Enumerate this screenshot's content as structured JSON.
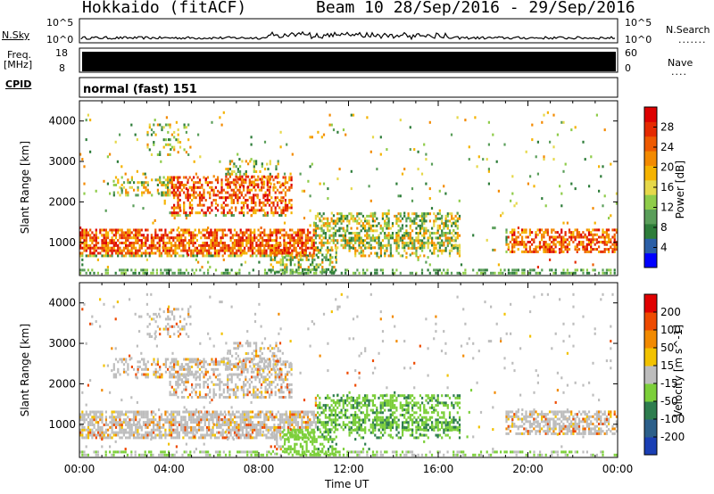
{
  "header": {
    "radar": "Hokkaido (fitACF)",
    "beam_date": "Beam 10  28/Sep/2016 - 29/Sep/2016"
  },
  "strips": {
    "nsky_label": "N.Sky",
    "nsky_ticks": [
      "10^5",
      "10^0"
    ],
    "nsearch_label": "N.Search",
    "nsearch_ticks": [
      "10^5",
      "10^0"
    ],
    "freq_label": "Freq.",
    "freq_unit": "[MHz]",
    "freq_ticks": [
      "18",
      "8"
    ],
    "nave_label": "Nave",
    "nave_ticks": [
      "60",
      "0"
    ],
    "cpid_label": "CPID",
    "cpid_value": "normal (fast) 151"
  },
  "chart_data": [
    {
      "type": "heatmap",
      "name": "power",
      "ylabel": "Slant Range [km]",
      "yticks": [
        "4000",
        "3000",
        "2000",
        "1000"
      ],
      "ylim": [
        180,
        4500
      ],
      "colorbar_label": "Power [dB]",
      "colorbar_ticks": [
        "28",
        "24",
        "20",
        "16",
        "12",
        "8",
        "4"
      ],
      "colorbar_colors": [
        "#0000ff",
        "#2b5fa6",
        "#2e7d3a",
        "#5a9e5a",
        "#8fcc4a",
        "#e6d84a",
        "#f5b300",
        "#f38a00",
        "#ee5a00",
        "#e52a00",
        "#dd0000"
      ],
      "features": [
        {
          "t_start": 0.0,
          "t_end": 10.5,
          "range_km": 1000,
          "level": "high"
        },
        {
          "t_start": 4.5,
          "t_end": 10.0,
          "range_km": 2400,
          "level": "high"
        },
        {
          "t_start": 10.5,
          "t_end": 17.0,
          "range_km": 1400,
          "level": "mid"
        },
        {
          "t_start": 19.0,
          "t_end": 24.0,
          "range_km": 1100,
          "level": "high"
        }
      ]
    },
    {
      "type": "heatmap",
      "name": "velocity",
      "ylabel": "Slant Range [km]",
      "yticks": [
        "4000",
        "3000",
        "2000",
        "1000"
      ],
      "ylim": [
        180,
        4500
      ],
      "colorbar_label": "Velocity [m s^-1]",
      "colorbar_ticks": [
        "200",
        "100",
        "50",
        "15",
        "-15",
        "-50",
        "-100",
        "-200"
      ],
      "colorbar_colors": [
        "#1a3fb4",
        "#2c5f8a",
        "#2e7d4e",
        "#7ccf3a",
        "#bdbdbd",
        "#f2c200",
        "#f28a00",
        "#ee4a00",
        "#e00000"
      ],
      "xticks": [
        "00:00",
        "04:00",
        "08:00",
        "12:00",
        "16:00",
        "20:00",
        "00:00"
      ],
      "xlabel": "Time UT"
    }
  ]
}
